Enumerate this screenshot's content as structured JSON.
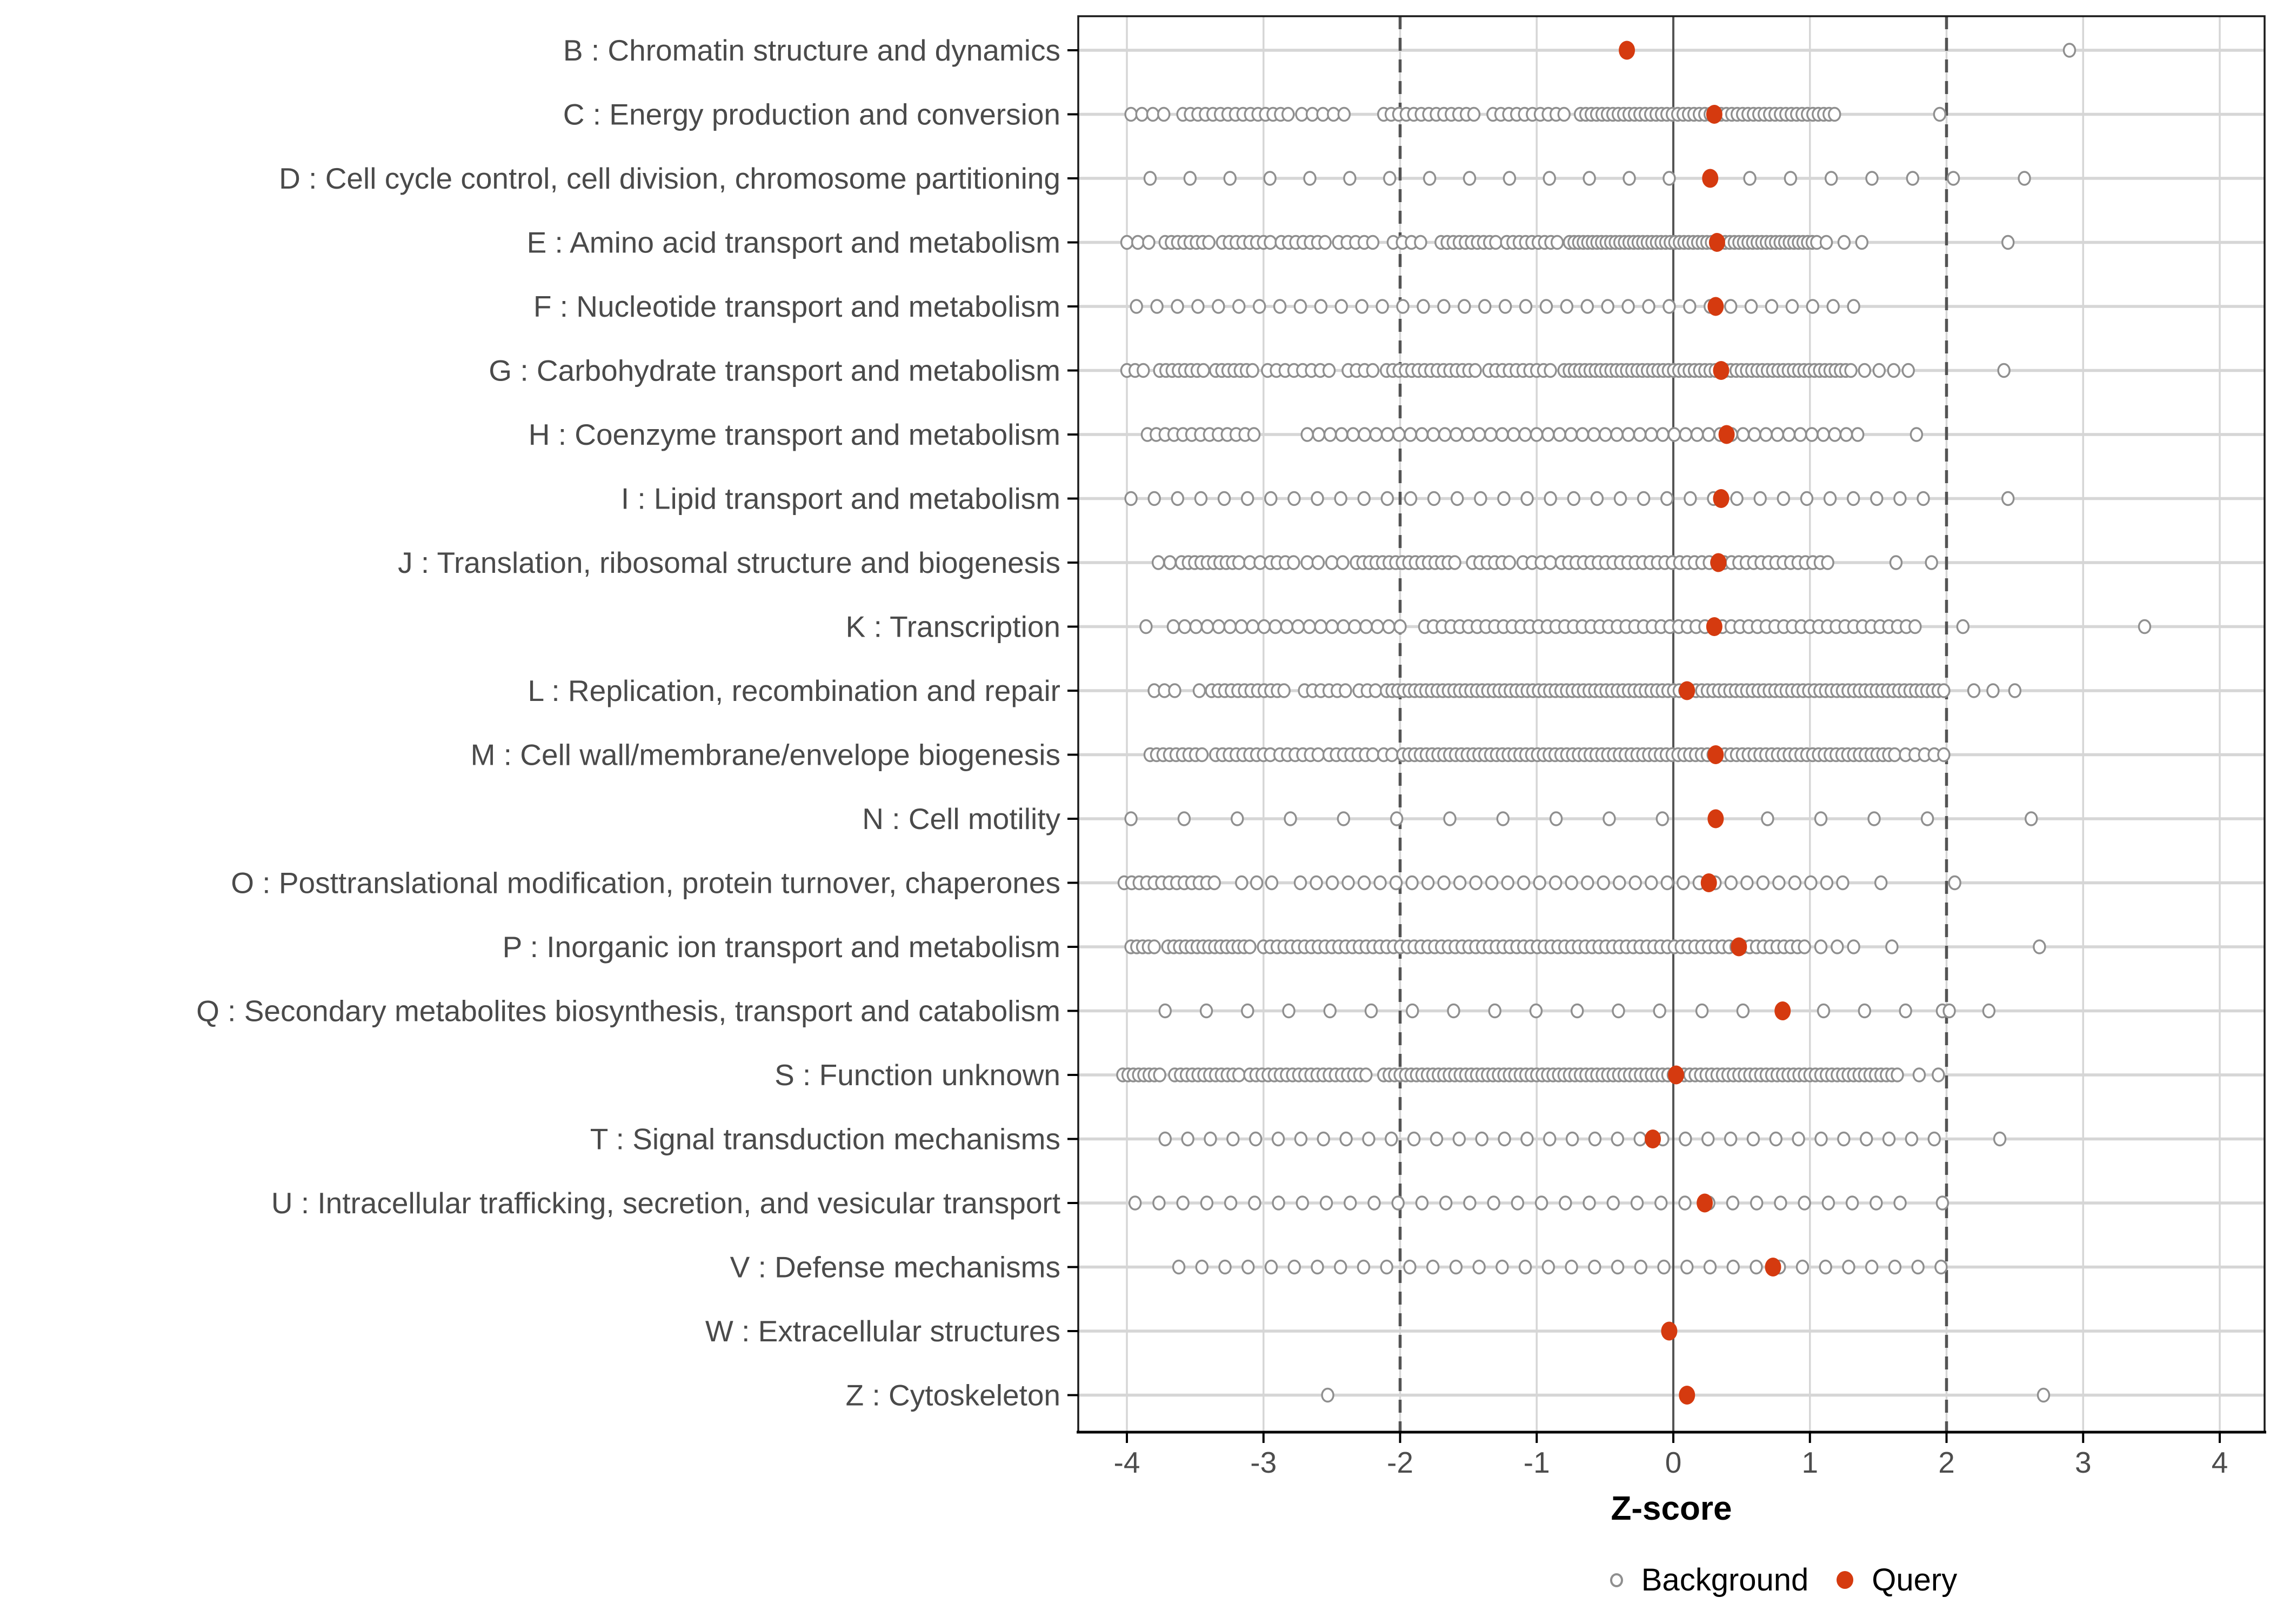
{
  "figure": {
    "background_color": "#FFFFFF"
  },
  "colors": {
    "background_point_stroke": "#8F8F8F",
    "background_point_fill": "#FFFFFF",
    "query_point_fill": "#D53A0F",
    "grid_line": "#D6D6D6",
    "reference_line": "#545454",
    "axis_text": "#4D4D4D",
    "category_text": "#4A4A4A",
    "panel_border": "#1A1A1A"
  },
  "chart_data": {
    "type": "scatter",
    "title": "",
    "xlabel": "Z-score",
    "ylabel": "",
    "x_ticks": [
      -4,
      -3,
      -2,
      -1,
      0,
      1,
      2,
      3,
      4
    ],
    "xlim": [
      -4.36,
      4.33
    ],
    "grid": "major gridlines on, light gray",
    "reference_lines": {
      "solid_x": 0,
      "dashed_x": [
        -2,
        2
      ]
    },
    "legend": {
      "position": "bottom",
      "items": [
        {
          "label": "Background",
          "marker": "open-circle",
          "color": "#8F8F8F"
        },
        {
          "label": "Query",
          "marker": "filled-circle",
          "color": "#D53A0F"
        }
      ]
    },
    "background_segments_format": "[zStart, zEnd, countOfEvenlySpacedPoints]",
    "categories": [
      {
        "label": "B : Chromatin structure and dynamics",
        "query": -0.34,
        "background_segments": [
          [
            2.9,
            2.9,
            1
          ]
        ]
      },
      {
        "label": "C : Energy production and conversion",
        "query": 0.3,
        "background_segments": [
          [
            -3.97,
            -3.73,
            4
          ],
          [
            -3.59,
            -2.82,
            15
          ],
          [
            -2.72,
            -2.41,
            5
          ],
          [
            -2.12,
            -1.46,
            13
          ],
          [
            -1.32,
            -0.8,
            10
          ],
          [
            -0.68,
            1.18,
            48
          ],
          [
            1.95,
            1.95,
            1
          ]
        ]
      },
      {
        "label": "D : Cell cycle control, cell division, chromosome partitioning",
        "query": 0.27,
        "background_segments": [
          [
            -3.83,
            -0.03,
            14
          ],
          [
            0.56,
            2.05,
            6
          ],
          [
            2.57,
            2.57,
            1
          ]
        ]
      },
      {
        "label": "E : Amino acid transport and metabolism",
        "query": 0.32,
        "background_segments": [
          [
            -4.0,
            -3.84,
            3
          ],
          [
            -3.72,
            -3.4,
            8
          ],
          [
            -3.3,
            -2.95,
            8
          ],
          [
            -2.87,
            -2.55,
            7
          ],
          [
            -2.45,
            -2.2,
            5
          ],
          [
            -2.05,
            -1.85,
            4
          ],
          [
            -1.7,
            -1.3,
            10
          ],
          [
            -1.22,
            -0.85,
            9
          ],
          [
            -0.76,
            1.05,
            55
          ],
          [
            1.12,
            1.38,
            3
          ],
          [
            2.45,
            2.45,
            1
          ]
        ]
      },
      {
        "label": "F : Nucleotide transport and metabolism",
        "query": 0.31,
        "background_segments": [
          [
            -3.93,
            1.32,
            36
          ]
        ]
      },
      {
        "label": "G : Carbohydrate transport and metabolism",
        "query": 0.35,
        "background_segments": [
          [
            -4.0,
            -3.88,
            3
          ],
          [
            -3.76,
            -3.44,
            8
          ],
          [
            -3.35,
            -3.08,
            7
          ],
          [
            -2.97,
            -2.52,
            8
          ],
          [
            -2.38,
            -2.2,
            4
          ],
          [
            -2.1,
            -1.45,
            15
          ],
          [
            -1.35,
            -0.9,
            10
          ],
          [
            -0.8,
            1.3,
            56
          ],
          [
            1.4,
            1.72,
            4
          ],
          [
            2.42,
            2.42,
            1
          ]
        ]
      },
      {
        "label": "H : Coenzyme transport and metabolism",
        "query": 0.39,
        "background_segments": [
          [
            -3.85,
            -3.07,
            13
          ],
          [
            -2.68,
            1.35,
            49
          ],
          [
            1.78,
            1.78,
            1
          ]
        ]
      },
      {
        "label": "I : Lipid transport and metabolism",
        "query": 0.35,
        "background_segments": [
          [
            -3.97,
            1.83,
            35
          ],
          [
            2.45,
            2.45,
            1
          ]
        ]
      },
      {
        "label": "J : Translation, ribosomal structure and biogenesis",
        "query": 0.33,
        "background_segments": [
          [
            -3.77,
            -3.6,
            3
          ],
          [
            -3.55,
            -3.18,
            9
          ],
          [
            -3.1,
            -2.95,
            3
          ],
          [
            -2.9,
            -2.78,
            3
          ],
          [
            -2.68,
            -2.6,
            2
          ],
          [
            -2.5,
            -2.42,
            2
          ],
          [
            -2.32,
            -1.6,
            16
          ],
          [
            -1.47,
            -1.2,
            6
          ],
          [
            -1.1,
            -0.9,
            4
          ],
          [
            -0.82,
            1.13,
            37
          ],
          [
            1.63,
            1.63,
            1
          ],
          [
            1.89,
            1.89,
            1
          ]
        ]
      },
      {
        "label": "K : Transcription",
        "query": 0.3,
        "background_segments": [
          [
            -3.86,
            -3.86,
            1
          ],
          [
            -3.66,
            -2.0,
            21
          ],
          [
            -1.82,
            1.77,
            57
          ],
          [
            2.12,
            2.12,
            1
          ],
          [
            3.45,
            3.45,
            1
          ]
        ]
      },
      {
        "label": "L : Replication, recombination and repair",
        "query": 0.1,
        "background_segments": [
          [
            -3.8,
            -3.65,
            3
          ],
          [
            -3.47,
            -3.47,
            1
          ],
          [
            -3.38,
            -2.85,
            12
          ],
          [
            -2.7,
            -2.4,
            6
          ],
          [
            -2.3,
            -2.18,
            3
          ],
          [
            -2.1,
            1.98,
            100
          ],
          [
            2.2,
            2.2,
            1
          ],
          [
            2.34,
            2.34,
            1
          ],
          [
            2.5,
            2.5,
            1
          ]
        ]
      },
      {
        "label": "M : Cell wall/membrane/envelope biogenesis",
        "query": 0.31,
        "background_segments": [
          [
            -3.83,
            -3.45,
            9
          ],
          [
            -3.35,
            -2.95,
            9
          ],
          [
            -2.88,
            -2.6,
            6
          ],
          [
            -2.52,
            -2.2,
            7
          ],
          [
            -2.12,
            -2.06,
            2
          ],
          [
            -1.98,
            1.62,
            85
          ],
          [
            1.7,
            1.98,
            5
          ]
        ]
      },
      {
        "label": "N : Cell motility",
        "query": 0.31,
        "background_segments": [
          [
            -3.97,
            -0.08,
            11
          ],
          [
            0.69,
            1.86,
            4
          ],
          [
            2.62,
            2.62,
            1
          ]
        ]
      },
      {
        "label": "O : Posttranslational modification, protein turnover, chaperones",
        "query": 0.26,
        "background_segments": [
          [
            -4.02,
            -3.36,
            13
          ],
          [
            -3.16,
            -2.94,
            3
          ],
          [
            -2.73,
            1.24,
            35
          ],
          [
            1.52,
            1.52,
            1
          ],
          [
            2.06,
            2.06,
            1
          ]
        ]
      },
      {
        "label": "P : Inorganic ion transport and metabolism",
        "query": 0.48,
        "background_segments": [
          [
            -3.97,
            -3.8,
            5
          ],
          [
            -3.7,
            -3.1,
            15
          ],
          [
            -3.0,
            0.96,
            80
          ],
          [
            1.08,
            1.32,
            3
          ],
          [
            1.6,
            1.6,
            1
          ],
          [
            2.68,
            2.68,
            1
          ]
        ]
      },
      {
        "label": "Q : Secondary metabolites biosynthesis, transport and catabolism",
        "query": 0.8,
        "background_segments": [
          [
            -3.72,
            -0.1,
            13
          ],
          [
            0.21,
            0.51,
            2
          ],
          [
            1.1,
            1.7,
            3
          ],
          [
            1.97,
            2.02,
            2
          ],
          [
            2.31,
            2.31,
            1
          ]
        ]
      },
      {
        "label": "S : Function unknown",
        "query": 0.02,
        "background_segments": [
          [
            -4.03,
            -3.76,
            8
          ],
          [
            -3.65,
            -3.18,
            12
          ],
          [
            -3.1,
            -2.25,
            20
          ],
          [
            -2.12,
            1.64,
            95
          ],
          [
            1.8,
            1.8,
            1
          ],
          [
            1.94,
            1.94,
            1
          ]
        ]
      },
      {
        "label": "T : Signal transduction mechanisms",
        "query": -0.15,
        "background_segments": [
          [
            -3.72,
            1.91,
            35
          ],
          [
            2.39,
            2.39,
            1
          ]
        ]
      },
      {
        "label": "U : Intracellular trafficking, secretion, and vesicular transport",
        "query": 0.23,
        "background_segments": [
          [
            -3.94,
            1.66,
            33
          ],
          [
            1.97,
            1.97,
            1
          ]
        ]
      },
      {
        "label": "V : Defense mechanisms",
        "query": 0.73,
        "background_segments": [
          [
            -3.62,
            1.96,
            34
          ]
        ]
      },
      {
        "label": "W : Extracellular structures",
        "query": -0.03,
        "background_segments": []
      },
      {
        "label": "Z : Cytoskeleton",
        "query": 0.1,
        "background_segments": [
          [
            -2.53,
            -2.53,
            1
          ],
          [
            2.71,
            2.71,
            1
          ]
        ]
      }
    ]
  }
}
